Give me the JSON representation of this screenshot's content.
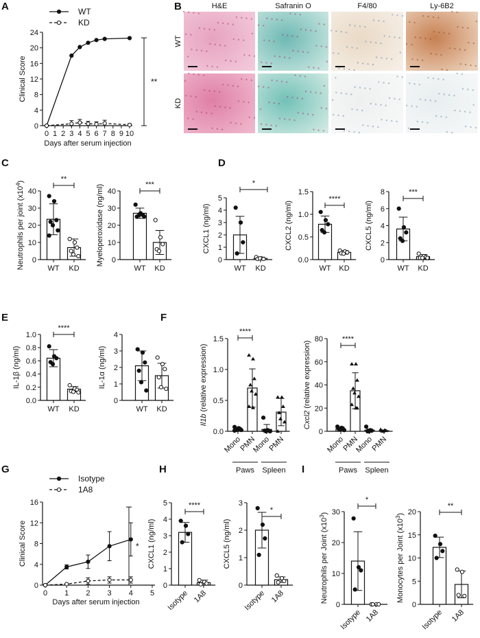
{
  "panel_letters": [
    "A",
    "B",
    "C",
    "D",
    "E",
    "F",
    "G",
    "H",
    "I"
  ],
  "histology": {
    "columns": [
      "H&E",
      "Safranin O",
      "F4/80",
      "Ly-6B2"
    ],
    "rows": [
      "WT",
      "KD"
    ]
  },
  "chart_data": [
    {
      "id": "A",
      "type": "line",
      "xlabel": "Days after serum injection",
      "ylabel": "Clinical Score",
      "xlim": [
        0,
        10
      ],
      "xticks": [
        0,
        1,
        2,
        3,
        4,
        5,
        6,
        7,
        8,
        9,
        10
      ],
      "ylim": [
        0,
        24
      ],
      "yticks": [
        0,
        4,
        8,
        12,
        16,
        20,
        24
      ],
      "legend_position": "top-left",
      "significance": "**",
      "series": [
        {
          "name": "WT",
          "marker": "filled",
          "x": [
            0,
            3,
            4,
            5,
            6,
            7,
            10
          ],
          "y": [
            0,
            18,
            20.2,
            21.3,
            22,
            22.3,
            22.5
          ],
          "err": [
            0,
            0,
            0,
            0,
            0,
            0,
            0
          ]
        },
        {
          "name": "KD",
          "marker": "open",
          "x": [
            0,
            3,
            4,
            5,
            6,
            7,
            10
          ],
          "y": [
            0,
            0.5,
            0.8,
            0.5,
            0.4,
            0.6,
            0.2
          ],
          "err": [
            0,
            0.8,
            0.8,
            0.6,
            0.6,
            0.8,
            0.3
          ]
        }
      ]
    },
    {
      "id": "C1",
      "type": "bar",
      "ylabel": "Neutrophils per joint (x10",
      "ylabel_sup": "4",
      "ylabel_end": ")",
      "ylim": [
        0,
        40
      ],
      "yticks": [
        0,
        10,
        20,
        30,
        40
      ],
      "categories": [
        "WT",
        "KD"
      ],
      "significance": "**",
      "bars": [
        {
          "mean": 23.5,
          "err": 32.5,
          "marker": "filled",
          "points": [
            37,
            34,
            23,
            22,
            20,
            17,
            14
          ]
        },
        {
          "mean": 7,
          "err": 12,
          "marker": "open",
          "points": [
            12,
            10,
            7,
            5,
            3,
            2
          ]
        }
      ]
    },
    {
      "id": "C2",
      "type": "bar",
      "ylabel": "Myeloperoxidase (ng/ml)",
      "ylim": [
        0,
        40
      ],
      "yticks": [
        0,
        10,
        20,
        30,
        40
      ],
      "categories": [
        "WT",
        "KD"
      ],
      "significance": "***",
      "bars": [
        {
          "mean": 27,
          "err": 30,
          "marker": "filled",
          "points": [
            32,
            27,
            26,
            25,
            26,
            25
          ]
        },
        {
          "mean": 10,
          "err": 17,
          "marker": "open",
          "points": [
            23,
            13,
            9,
            6,
            5
          ]
        }
      ]
    },
    {
      "id": "D1",
      "type": "bar",
      "ylabel": "CXCL1 (ng/ml)",
      "ylim": [
        0,
        5
      ],
      "yticks": [
        0,
        1,
        2,
        3,
        4,
        5
      ],
      "categories": [
        "WT",
        "KD"
      ],
      "significance": "*",
      "bars": [
        {
          "mean": 2,
          "err": 3.5,
          "marker": "filled",
          "points": [
            4.2,
            3,
            1.4,
            0.5
          ]
        },
        {
          "mean": 0.1,
          "err": 0.2,
          "marker": "open",
          "points": [
            0.2,
            0.1,
            0.05,
            0.05,
            0.1
          ]
        }
      ]
    },
    {
      "id": "D2",
      "type": "bar",
      "ylabel": "CXCL2 (ng/ml)",
      "ylim": [
        0,
        1.5
      ],
      "yticks": [
        "0.0",
        "0.5",
        "1.0",
        "1.5"
      ],
      "categories": [
        "WT",
        "KD"
      ],
      "significance": "****",
      "bars": [
        {
          "mean": 0.78,
          "err": 0.96,
          "marker": "filled",
          "points": [
            1.05,
            0.87,
            0.78,
            0.65,
            0.6
          ]
        },
        {
          "mean": 0.16,
          "err": 0.2,
          "marker": "open",
          "points": [
            0.2,
            0.18,
            0.16,
            0.14,
            0.13
          ]
        }
      ]
    },
    {
      "id": "D3",
      "type": "bar",
      "ylabel": "CXCL5 (ng/ml)",
      "ylim": [
        0,
        8
      ],
      "yticks": [
        0,
        2,
        4,
        6,
        8
      ],
      "categories": [
        "WT",
        "KD"
      ],
      "significance": "***",
      "bars": [
        {
          "mean": 3.6,
          "err": 5,
          "marker": "filled",
          "points": [
            6,
            3.8,
            3.2,
            2.5,
            2.2
          ]
        },
        {
          "mean": 0.35,
          "err": 0.6,
          "marker": "open",
          "points": [
            0.7,
            0.4,
            0.3,
            0.2,
            0.2,
            0.2
          ]
        }
      ]
    },
    {
      "id": "E1",
      "type": "bar",
      "ylabel": "IL-1β (ng/ml)",
      "ylim": [
        0,
        1
      ],
      "yticks": [
        "0.0",
        "0.2",
        "0.4",
        "0.6",
        "0.8",
        "1.0"
      ],
      "categories": [
        "WT",
        "KD"
      ],
      "significance": "****",
      "bars": [
        {
          "mean": 0.64,
          "err": 0.77,
          "marker": "filled",
          "points": [
            0.82,
            0.67,
            0.64,
            0.58,
            0.55
          ]
        },
        {
          "mean": 0.17,
          "err": 0.21,
          "marker": "open",
          "points": [
            0.23,
            0.18,
            0.16,
            0.14,
            0.13,
            0.12
          ]
        }
      ]
    },
    {
      "id": "E2",
      "type": "bar",
      "ylabel": "IL-1α (ng/ml)",
      "ylim": [
        0,
        4
      ],
      "yticks": [
        0,
        1,
        2,
        3,
        4
      ],
      "categories": [
        "WT",
        "KD"
      ],
      "bars": [
        {
          "mean": 2.1,
          "err": 3.0,
          "marker": "filled",
          "points": [
            3.1,
            2.9,
            2.3,
            1.8,
            1.1,
            0.6
          ]
        },
        {
          "mean": 1.5,
          "err": 2.25,
          "marker": "open",
          "points": [
            2.6,
            2.2,
            1.9,
            1.4,
            0.8,
            0.7
          ]
        }
      ]
    },
    {
      "id": "F1",
      "type": "bar",
      "ylabel_italic": "Il1b",
      "ylabel": " (relative expression)",
      "ylim": [
        0,
        1.5
      ],
      "yticks": [
        "0.0",
        "0.5",
        "1.0",
        "1.5"
      ],
      "categories": [
        "Mono",
        "PMN",
        "Mono",
        "PMN"
      ],
      "groups": [
        "Paws",
        "Spleen"
      ],
      "significance": "****",
      "bars": [
        {
          "mean": 0.03,
          "err": 0.05,
          "marker": "filled",
          "points": [
            0.07,
            0.05,
            0.04,
            0.03,
            0.02,
            0.02,
            0.01
          ]
        },
        {
          "mean": 0.7,
          "err": 1.01,
          "marker": "triangle",
          "points": [
            1.23,
            1.17,
            0.85,
            0.75,
            0.65,
            0.6,
            0.4,
            0.38
          ]
        },
        {
          "mean": 0.03,
          "err": 0.11,
          "marker": "filled",
          "points": [
            0.22,
            0.02,
            0.01,
            0.01,
            0.0,
            0.0
          ]
        },
        {
          "mean": 0.31,
          "err": 0.53,
          "marker": "triangle",
          "points": [
            0.55,
            0.55,
            0.4,
            0.3,
            0.2,
            0.15,
            0.0
          ]
        }
      ]
    },
    {
      "id": "F2",
      "type": "bar",
      "ylabel_italic": "Cxcl2",
      "ylabel": " (relative expression)",
      "ylim": [
        0,
        80
      ],
      "yticks": [
        0,
        20,
        40,
        60,
        80
      ],
      "categories": [
        "Mono",
        "PMN",
        "Mono",
        "PMN"
      ],
      "groups": [
        "Paws",
        "Spleen"
      ],
      "significance": "****",
      "bars": [
        {
          "mean": 2,
          "err": 3,
          "marker": "filled",
          "points": [
            4,
            3,
            2.5,
            2,
            1.5,
            1
          ]
        },
        {
          "mean": 35,
          "err": 50.5,
          "marker": "triangle",
          "points": [
            58,
            58,
            44,
            37,
            33,
            30,
            23,
            20,
            20
          ]
        },
        {
          "mean": 1,
          "err": 2,
          "marker": "filled",
          "points": [
            4,
            1,
            0.5,
            0,
            0
          ]
        },
        {
          "mean": 0.5,
          "err": 1,
          "marker": "triangle",
          "points": [
            1.5,
            1,
            0.5,
            0.2,
            0
          ]
        }
      ]
    },
    {
      "id": "G",
      "type": "line",
      "xlabel": "Days after serum injection",
      "ylabel": "Clinical Score",
      "xlim": [
        0,
        5
      ],
      "xticks": [
        0,
        1,
        2,
        3,
        4,
        5
      ],
      "ylim": [
        0,
        16
      ],
      "yticks": [
        0,
        4,
        8,
        12,
        16
      ],
      "legend_position": "top-left",
      "significance": "*",
      "series": [
        {
          "name": "Isotype",
          "marker": "filled",
          "x": [
            0,
            1,
            2,
            3,
            4
          ],
          "y": [
            0,
            3.5,
            4.5,
            7.5,
            8.8
          ],
          "err": [
            0,
            0.4,
            1.3,
            2.8,
            3.2
          ]
        },
        {
          "name": "1A8",
          "marker": "open",
          "x": [
            0,
            1,
            2,
            3,
            4
          ],
          "y": [
            0,
            0.2,
            0.8,
            1,
            1
          ],
          "err": [
            0,
            0.1,
            0.6,
            0.6,
            0.6
          ]
        }
      ]
    },
    {
      "id": "H1",
      "type": "bar",
      "ylabel": "CXCL1 (ng/ml)",
      "ylim": [
        0,
        5
      ],
      "yticks": [
        0,
        1,
        2,
        3,
        4,
        5
      ],
      "categories": [
        "Isotype",
        "1A8"
      ],
      "significance": "****",
      "bars": [
        {
          "mean": 3.2,
          "err": 3.8,
          "marker": "filled",
          "points": [
            3.9,
            3.6,
            3.1,
            2.6
          ]
        },
        {
          "mean": 0.15,
          "err": 0.3,
          "marker": "open",
          "points": [
            0.3,
            0.2,
            0.1,
            0.05
          ]
        }
      ]
    },
    {
      "id": "H2",
      "type": "bar",
      "ylabel": "CXCL5 (ng/ml)",
      "ylim": [
        0,
        3
      ],
      "yticks": [
        0,
        1,
        2,
        3
      ],
      "categories": [
        "Isotype",
        "1A8"
      ],
      "significance": "*",
      "bars": [
        {
          "mean": 2,
          "err": 2.65,
          "marker": "filled",
          "points": [
            2.8,
            2.2,
            1.7,
            1.1
          ]
        },
        {
          "mean": 0.2,
          "err": 0.3,
          "marker": "open",
          "points": [
            0.35,
            0.25,
            0.15,
            0.1
          ]
        }
      ]
    },
    {
      "id": "I1",
      "type": "bar",
      "ylabel": "Neutrophils per Joint (x10",
      "ylabel_sup": "3",
      "ylabel_end": ")",
      "ylim": [
        0,
        30
      ],
      "yticks": [
        0,
        10,
        20,
        30
      ],
      "categories": [
        "Isotype",
        "1A8"
      ],
      "significance": "*",
      "bars": [
        {
          "mean": 14,
          "err": 23.5,
          "marker": "filled",
          "points": [
            27.8,
            12,
            11,
            4.8
          ]
        },
        {
          "mean": 0,
          "err": 0,
          "marker": "open",
          "points": [
            0,
            0,
            0,
            0
          ]
        }
      ]
    },
    {
      "id": "I2",
      "type": "bar",
      "ylabel": "Monocytes per Joint (x10",
      "ylabel_sup": "3",
      "ylabel_end": ")",
      "ylim": [
        0,
        20
      ],
      "yticks": [
        0,
        5,
        10,
        15,
        20
      ],
      "categories": [
        "Isotype",
        "1A8"
      ],
      "significance": "**",
      "bars": [
        {
          "mean": 12.3,
          "err": 14.5,
          "marker": "filled",
          "points": [
            14.8,
            13,
            11.5,
            10
          ]
        },
        {
          "mean": 4.3,
          "err": 7.2,
          "marker": "open",
          "points": [
            7.5,
            7,
            1.8,
            2
          ]
        }
      ]
    }
  ]
}
